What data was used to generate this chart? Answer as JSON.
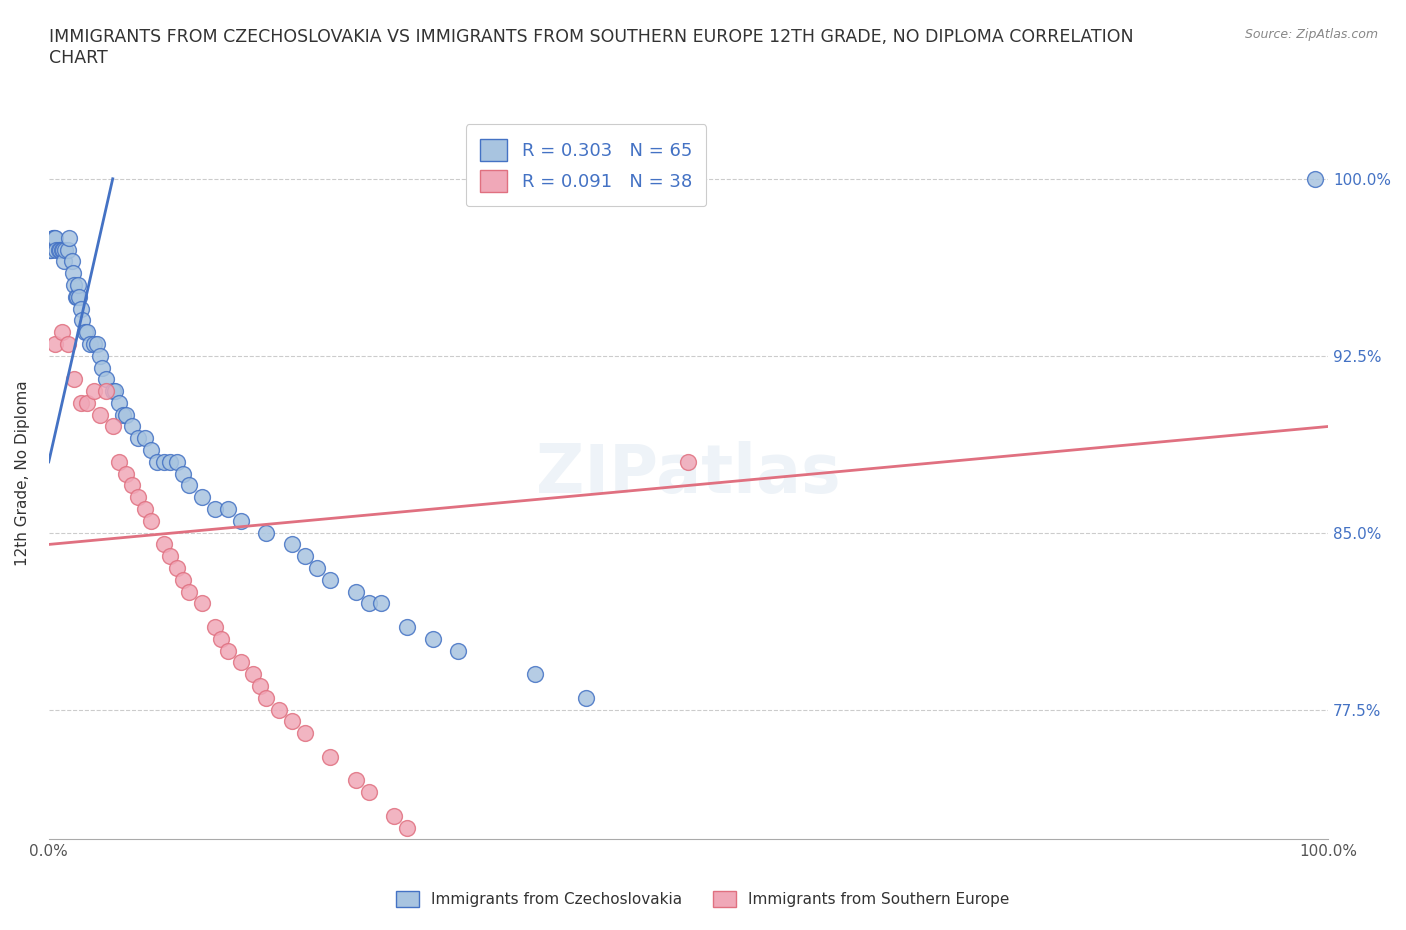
{
  "title": "IMMIGRANTS FROM CZECHOSLOVAKIA VS IMMIGRANTS FROM SOUTHERN EUROPE 12TH GRADE, NO DIPLOMA CORRELATION\nCHART",
  "source_text": "Source: ZipAtlas.com",
  "ylabel": "12th Grade, No Diploma",
  "xlim": [
    0.0,
    100.0
  ],
  "ylim": [
    72.0,
    103.0
  ],
  "yticks": [
    77.5,
    85.0,
    92.5,
    100.0
  ],
  "ytick_labels": [
    "77.5%",
    "85.0%",
    "92.5%",
    "100.0%"
  ],
  "xticks": [
    0.0,
    100.0
  ],
  "xtick_labels": [
    "0.0%",
    "100.0%"
  ],
  "blue_color": "#a8c4e0",
  "pink_color": "#f0a8b8",
  "blue_line_color": "#4472c4",
  "pink_line_color": "#e07080",
  "right_label_color": "#4472c4",
  "legend_blue_label": "Immigrants from Czechoslovakia",
  "legend_pink_label": "Immigrants from Southern Europe",
  "R_blue": 0.303,
  "N_blue": 65,
  "R_pink": 0.091,
  "N_pink": 38,
  "blue_scatter_x": [
    0.0,
    0.1,
    0.2,
    0.3,
    0.4,
    0.5,
    0.6,
    0.8,
    0.9,
    1.0,
    1.1,
    1.2,
    1.3,
    1.5,
    1.6,
    1.8,
    1.9,
    2.0,
    2.1,
    2.2,
    2.3,
    2.4,
    2.5,
    2.6,
    2.8,
    3.0,
    3.2,
    3.5,
    3.8,
    4.0,
    4.2,
    4.5,
    5.0,
    5.2,
    5.5,
    5.8,
    6.0,
    6.5,
    7.0,
    7.5,
    8.0,
    8.5,
    9.0,
    9.5,
    10.0,
    10.5,
    11.0,
    12.0,
    13.0,
    14.0,
    15.0,
    17.0,
    19.0,
    20.0,
    21.0,
    22.0,
    24.0,
    25.0,
    26.0,
    28.0,
    30.0,
    32.0,
    38.0,
    42.0,
    99.0
  ],
  "blue_scatter_y": [
    97.0,
    97.0,
    97.0,
    97.5,
    97.5,
    97.5,
    97.0,
    97.0,
    97.0,
    97.0,
    97.0,
    96.5,
    97.0,
    97.0,
    97.5,
    96.5,
    96.0,
    95.5,
    95.0,
    95.0,
    95.5,
    95.0,
    94.5,
    94.0,
    93.5,
    93.5,
    93.0,
    93.0,
    93.0,
    92.5,
    92.0,
    91.5,
    91.0,
    91.0,
    90.5,
    90.0,
    90.0,
    89.5,
    89.0,
    89.0,
    88.5,
    88.0,
    88.0,
    88.0,
    88.0,
    87.5,
    87.0,
    86.5,
    86.0,
    86.0,
    85.5,
    85.0,
    84.5,
    84.0,
    83.5,
    83.0,
    82.5,
    82.0,
    82.0,
    81.0,
    80.5,
    80.0,
    79.0,
    78.0,
    100.0
  ],
  "pink_scatter_x": [
    0.5,
    1.0,
    1.5,
    2.0,
    2.5,
    3.0,
    3.5,
    4.0,
    4.5,
    5.0,
    5.5,
    6.0,
    6.5,
    7.0,
    7.5,
    8.0,
    9.0,
    9.5,
    10.0,
    10.5,
    11.0,
    12.0,
    13.0,
    13.5,
    14.0,
    15.0,
    16.0,
    16.5,
    17.0,
    18.0,
    19.0,
    20.0,
    22.0,
    24.0,
    25.0,
    27.0,
    28.0,
    50.0
  ],
  "pink_scatter_y": [
    93.0,
    93.5,
    93.0,
    91.5,
    90.5,
    90.5,
    91.0,
    90.0,
    91.0,
    89.5,
    88.0,
    87.5,
    87.0,
    86.5,
    86.0,
    85.5,
    84.5,
    84.0,
    83.5,
    83.0,
    82.5,
    82.0,
    81.0,
    80.5,
    80.0,
    79.5,
    79.0,
    78.5,
    78.0,
    77.5,
    77.0,
    76.5,
    75.5,
    74.5,
    74.0,
    73.0,
    72.5,
    88.0
  ],
  "blue_line_x": [
    0.0,
    5.0
  ],
  "blue_line_y": [
    88.0,
    100.0
  ],
  "pink_line_x": [
    0.0,
    100.0
  ],
  "pink_line_y": [
    84.5,
    89.5
  ]
}
